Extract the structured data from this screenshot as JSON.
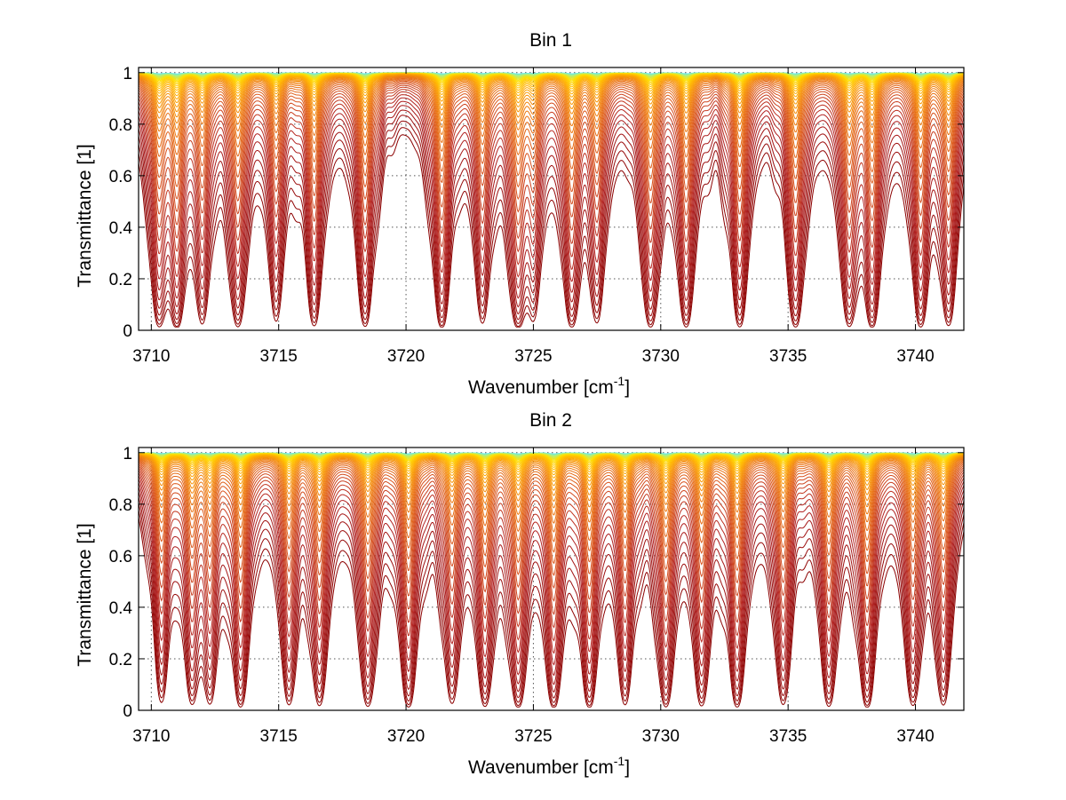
{
  "chart_data": [
    {
      "type": "line",
      "title": "Bin 1",
      "xlabel": "Wavenumber [cm",
      "xlabel_sup": "-1",
      "xlabel_end": "]",
      "ylabel": "Transmittance [1]",
      "xlim": [
        3709.5,
        3741.9
      ],
      "ylim": [
        0,
        1.02
      ],
      "xticks": [
        3710,
        3715,
        3720,
        3725,
        3730,
        3735,
        3740
      ],
      "yticks": [
        0,
        0.2,
        0.4,
        0.6,
        0.8,
        1
      ],
      "ytick_labels": [
        "0",
        "0.2",
        "0.4",
        "0.6",
        "0.8",
        "1"
      ],
      "grid": true,
      "series_count": 50,
      "colormap": [
        "#8b0000",
        "#b22222",
        "#d9531e",
        "#f07f10",
        "#ffb000",
        "#ffe000",
        "#aaf08a",
        "#50e6ff"
      ],
      "absorption_lines": [
        {
          "center": 3710.3,
          "depth": 0.85
        },
        {
          "center": 3711.0,
          "depth": 0.95
        },
        {
          "center": 3712.0,
          "depth": 0.75
        },
        {
          "center": 3713.4,
          "depth": 0.92
        },
        {
          "center": 3714.9,
          "depth": 0.7
        },
        {
          "center": 3716.4,
          "depth": 0.85
        },
        {
          "center": 3718.4,
          "depth": 0.9
        },
        {
          "center": 3721.4,
          "depth": 0.97
        },
        {
          "center": 3723.0,
          "depth": 0.75
        },
        {
          "center": 3724.4,
          "depth": 0.98
        },
        {
          "center": 3725.0,
          "depth": 0.6
        },
        {
          "center": 3726.5,
          "depth": 0.92
        },
        {
          "center": 3727.5,
          "depth": 0.72
        },
        {
          "center": 3729.6,
          "depth": 0.95
        },
        {
          "center": 3731.0,
          "depth": 0.94
        },
        {
          "center": 3733.1,
          "depth": 0.93
        },
        {
          "center": 3735.3,
          "depth": 0.95
        },
        {
          "center": 3737.4,
          "depth": 0.88
        },
        {
          "center": 3738.3,
          "depth": 0.94
        },
        {
          "center": 3740.2,
          "depth": 0.9
        },
        {
          "center": 3741.3,
          "depth": 0.86
        }
      ]
    },
    {
      "type": "line",
      "title": "Bin 2",
      "xlabel": "Wavenumber [cm",
      "xlabel_sup": "-1",
      "xlabel_end": "]",
      "ylabel": "Transmittance [1]",
      "xlim": [
        3709.5,
        3741.9
      ],
      "ylim": [
        0,
        1.02
      ],
      "xticks": [
        3710,
        3715,
        3720,
        3725,
        3730,
        3735,
        3740
      ],
      "yticks": [
        0,
        0.2,
        0.4,
        0.6,
        0.8,
        1
      ],
      "ytick_labels": [
        "0",
        "0.2",
        "0.4",
        "0.6",
        "0.8",
        "1"
      ],
      "grid": true,
      "series_count": 50,
      "colormap": [
        "#8b0000",
        "#b22222",
        "#d9531e",
        "#f07f10",
        "#ffb000",
        "#ffe000",
        "#aaf08a",
        "#50e6ff"
      ],
      "absorption_lines": [
        {
          "center": 3710.4,
          "depth": 0.7
        },
        {
          "center": 3711.6,
          "depth": 0.75
        },
        {
          "center": 3712.3,
          "depth": 0.72
        },
        {
          "center": 3713.5,
          "depth": 0.9
        },
        {
          "center": 3715.4,
          "depth": 0.8
        },
        {
          "center": 3716.6,
          "depth": 0.85
        },
        {
          "center": 3718.5,
          "depth": 0.9
        },
        {
          "center": 3720.1,
          "depth": 0.95
        },
        {
          "center": 3721.8,
          "depth": 0.75
        },
        {
          "center": 3723.1,
          "depth": 0.88
        },
        {
          "center": 3724.4,
          "depth": 0.96
        },
        {
          "center": 3725.8,
          "depth": 0.98
        },
        {
          "center": 3727.2,
          "depth": 0.93
        },
        {
          "center": 3728.6,
          "depth": 0.8
        },
        {
          "center": 3730.2,
          "depth": 0.92
        },
        {
          "center": 3731.6,
          "depth": 0.85
        },
        {
          "center": 3733.0,
          "depth": 0.92
        },
        {
          "center": 3734.8,
          "depth": 0.8
        },
        {
          "center": 3736.6,
          "depth": 0.9
        },
        {
          "center": 3738.1,
          "depth": 0.96
        },
        {
          "center": 3739.9,
          "depth": 0.85
        },
        {
          "center": 3741.1,
          "depth": 0.84
        }
      ]
    }
  ]
}
